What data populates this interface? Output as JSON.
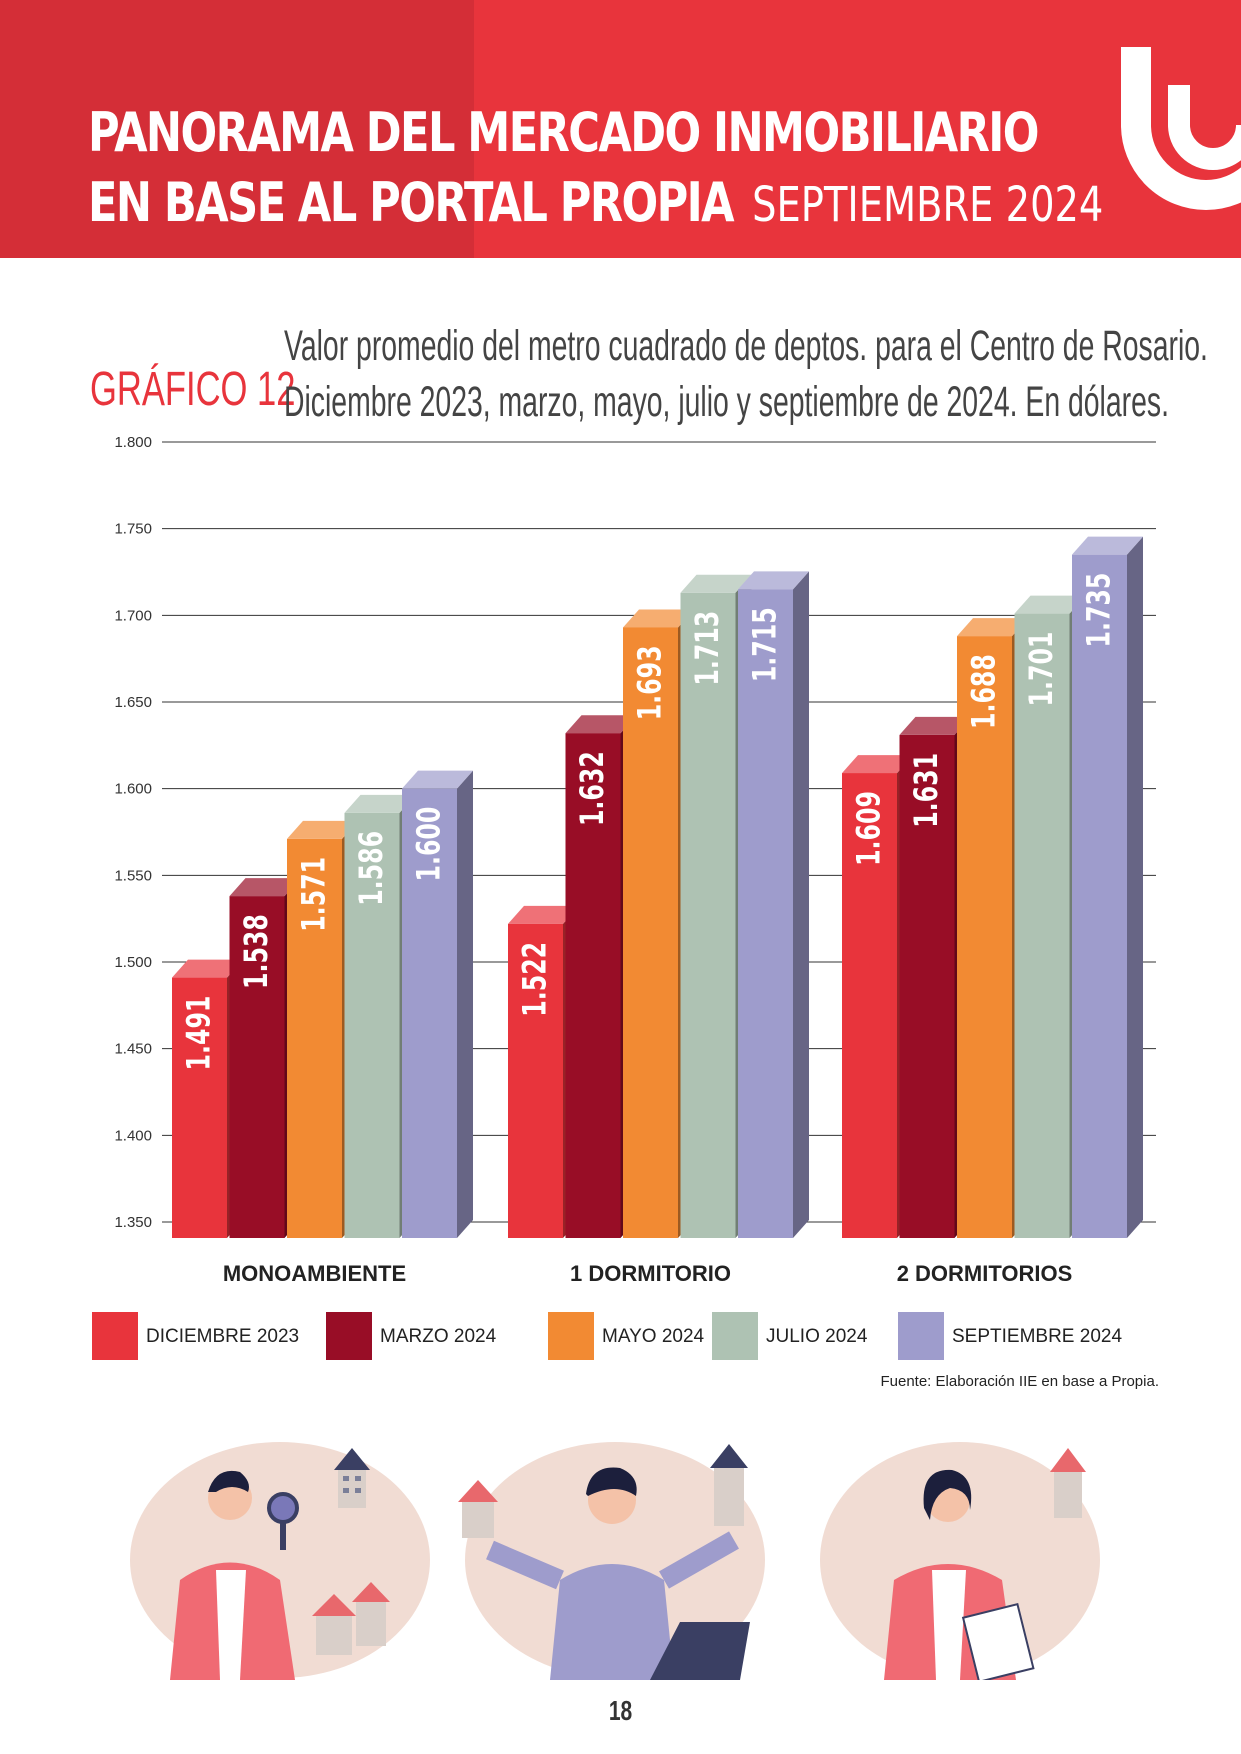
{
  "header": {
    "title_line1": "PANORAMA DEL MERCADO INMOBILIARIO",
    "title_line2": "EN BASE AL PORTAL PROPIA",
    "subtitle": "SEPTIEMBRE 2024",
    "brand_color": "#e8343c"
  },
  "chart_heading": {
    "label": "GRÁFICO 12",
    "title_line1": "Valor promedio del metro cuadrado de deptos. para el Centro de Rosario.",
    "title_line2": "Diciembre 2023, marzo, mayo, julio y septiembre de 2024. En dólares."
  },
  "chart_data": {
    "type": "bar",
    "categories": [
      "MONOAMBIENTE",
      "1 DORMITORIO",
      "2 DORMITORIOS"
    ],
    "series": [
      {
        "name": "DICIEMBRE 2023",
        "color": "#e8343c",
        "values": [
          1491,
          1522,
          1609
        ],
        "labels": [
          "1.491",
          "1.522",
          "1.609"
        ]
      },
      {
        "name": "MARZO 2024",
        "color": "#980d26",
        "values": [
          1538,
          1632,
          1631
        ],
        "labels": [
          "1.538",
          "1.632",
          "1.631"
        ]
      },
      {
        "name": "MAYO 2024",
        "color": "#f28a33",
        "values": [
          1571,
          1693,
          1688
        ],
        "labels": [
          "1.571",
          "1.693",
          "1.688"
        ]
      },
      {
        "name": "JULIO 2024",
        "color": "#aec2b3",
        "values": [
          1586,
          1713,
          1701
        ],
        "labels": [
          "1.586",
          "1.713",
          "1.701"
        ]
      },
      {
        "name": "SEPTIEMBRE 2024",
        "color": "#9e9ccc",
        "values": [
          1600,
          1715,
          1735
        ],
        "labels": [
          "1.600",
          "1.715",
          "1.735"
        ]
      }
    ],
    "yticks": [
      "1.350",
      "1.400",
      "1.450",
      "1.500",
      "1.550",
      "1.600",
      "1.650",
      "1.700",
      "1.750",
      "1.800"
    ],
    "ylim": [
      1350,
      1800
    ],
    "grid": true,
    "legend_position": "bottom"
  },
  "source": "Fuente: Elaboración IIE en base a Propia.",
  "page_number": "18"
}
